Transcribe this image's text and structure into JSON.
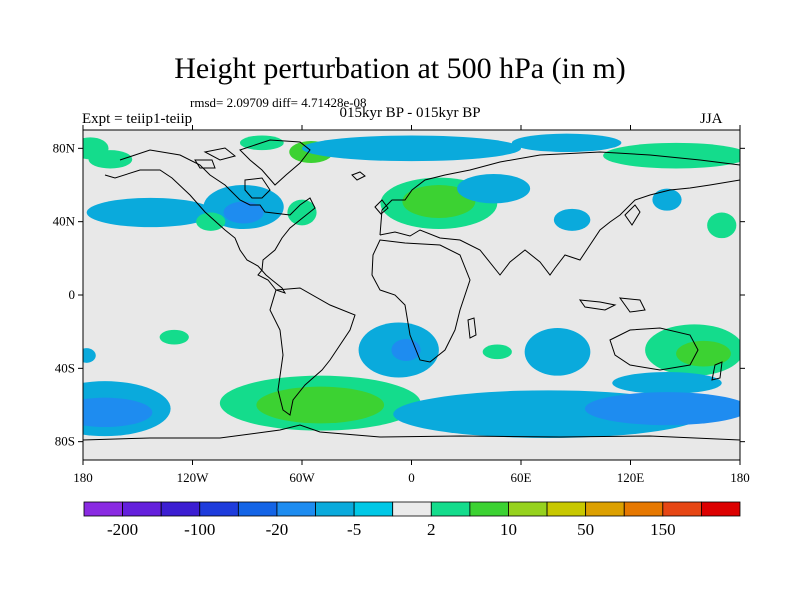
{
  "title": "Height perturbation at 500 hPa (in m)",
  "stats": "rmsd= 2.09709 diff= 4.71428e-08",
  "experiment": "Expt = teiip1-teiip",
  "period": "015kyr BP - 015kyr BP",
  "season": "JJA",
  "map": {
    "lon_range": [
      -180,
      180
    ],
    "lat_range": [
      -90,
      90
    ],
    "lat_ticks": [
      {
        "value": 80,
        "label": "80N"
      },
      {
        "value": 40,
        "label": "40N"
      },
      {
        "value": 0,
        "label": "0"
      },
      {
        "value": -40,
        "label": "40S"
      },
      {
        "value": -80,
        "label": "80S"
      }
    ],
    "lon_ticks": [
      {
        "value": -180,
        "label": "180"
      },
      {
        "value": -120,
        "label": "120W"
      },
      {
        "value": -60,
        "label": "60W"
      },
      {
        "value": 0,
        "label": "0"
      },
      {
        "value": 60,
        "label": "60E"
      },
      {
        "value": 120,
        "label": "120E"
      },
      {
        "value": 180,
        "label": "180"
      }
    ],
    "background_color": "#e8e8e8",
    "anomalies": [
      {
        "lon": -176,
        "lat": 80,
        "rx": 10,
        "ry": 6,
        "cls": 9
      },
      {
        "lon": -165,
        "lat": 74,
        "rx": 12,
        "ry": 5,
        "cls": 9
      },
      {
        "lon": -143,
        "lat": 45,
        "rx": 35,
        "ry": 8,
        "cls": 6
      },
      {
        "lon": -92,
        "lat": 48,
        "rx": 22,
        "ry": 12,
        "cls": 6
      },
      {
        "lon": -92,
        "lat": 45,
        "rx": 11,
        "ry": 6,
        "cls": 5
      },
      {
        "lon": -110,
        "lat": 40,
        "rx": 8,
        "ry": 5,
        "cls": 9
      },
      {
        "lon": -60,
        "lat": 45,
        "rx": 8,
        "ry": 7,
        "cls": 9
      },
      {
        "lon": -82,
        "lat": 83,
        "rx": 12,
        "ry": 4,
        "cls": 9
      },
      {
        "lon": -55,
        "lat": 78,
        "rx": 12,
        "ry": 6,
        "cls": 10
      },
      {
        "lon": 0,
        "lat": 80,
        "rx": 60,
        "ry": 7,
        "cls": 6
      },
      {
        "lon": 15,
        "lat": 50,
        "rx": 32,
        "ry": 14,
        "cls": 9
      },
      {
        "lon": 15,
        "lat": 51,
        "rx": 20,
        "ry": 9,
        "cls": 10
      },
      {
        "lon": 45,
        "lat": 58,
        "rx": 20,
        "ry": 8,
        "cls": 6
      },
      {
        "lon": 85,
        "lat": 83,
        "rx": 30,
        "ry": 5,
        "cls": 6
      },
      {
        "lon": 145,
        "lat": 76,
        "rx": 40,
        "ry": 7,
        "cls": 9
      },
      {
        "lon": 88,
        "lat": 41,
        "rx": 10,
        "ry": 6,
        "cls": 6
      },
      {
        "lon": 140,
        "lat": 52,
        "rx": 8,
        "ry": 6,
        "cls": 6
      },
      {
        "lon": 170,
        "lat": 38,
        "rx": 8,
        "ry": 7,
        "cls": 9
      },
      {
        "lon": -130,
        "lat": -23,
        "rx": 8,
        "ry": 4,
        "cls": 9
      },
      {
        "lon": -168,
        "lat": -62,
        "rx": 36,
        "ry": 15,
        "cls": 6
      },
      {
        "lon": -168,
        "lat": -64,
        "rx": 26,
        "ry": 8,
        "cls": 5
      },
      {
        "lon": -178,
        "lat": -33,
        "rx": 5,
        "ry": 4,
        "cls": 6
      },
      {
        "lon": -7,
        "lat": -30,
        "rx": 22,
        "ry": 15,
        "cls": 6
      },
      {
        "lon": -3,
        "lat": -30,
        "rx": 8,
        "ry": 6,
        "cls": 5
      },
      {
        "lon": 47,
        "lat": -31,
        "rx": 8,
        "ry": 4,
        "cls": 9
      },
      {
        "lon": 80,
        "lat": -31,
        "rx": 18,
        "ry": 13,
        "cls": 6
      },
      {
        "lon": 155,
        "lat": -30,
        "rx": 27,
        "ry": 14,
        "cls": 9
      },
      {
        "lon": 160,
        "lat": -32,
        "rx": 15,
        "ry": 7,
        "cls": 10
      },
      {
        "lon": 140,
        "lat": -48,
        "rx": 30,
        "ry": 6,
        "cls": 6
      },
      {
        "lon": -50,
        "lat": -59,
        "rx": 55,
        "ry": 15,
        "cls": 9
      },
      {
        "lon": -50,
        "lat": -60,
        "rx": 35,
        "ry": 10,
        "cls": 10
      },
      {
        "lon": 75,
        "lat": -65,
        "rx": 85,
        "ry": 13,
        "cls": 6
      },
      {
        "lon": 140,
        "lat": -62,
        "rx": 45,
        "ry": 9,
        "cls": 5
      }
    ]
  },
  "colorbar": {
    "colors": [
      "#8a2be2",
      "#6420dc",
      "#3c1ed2",
      "#1e3cdc",
      "#1464e6",
      "#1e8cf0",
      "#0aaadc",
      "#00c8e6",
      "#ebebeb",
      "#14dc8c",
      "#3cd232",
      "#96d21e",
      "#c8c800",
      "#dca000",
      "#e67800",
      "#e64614",
      "#dc0000"
    ],
    "labels": [
      {
        "text": "-200",
        "boundary": 1
      },
      {
        "text": "-100",
        "boundary": 3
      },
      {
        "text": "-20",
        "boundary": 5
      },
      {
        "text": "-5",
        "boundary": 7
      },
      {
        "text": "2",
        "boundary": 9
      },
      {
        "text": "10",
        "boundary": 11
      },
      {
        "text": "50",
        "boundary": 13
      },
      {
        "text": "150",
        "boundary": 15
      }
    ]
  }
}
